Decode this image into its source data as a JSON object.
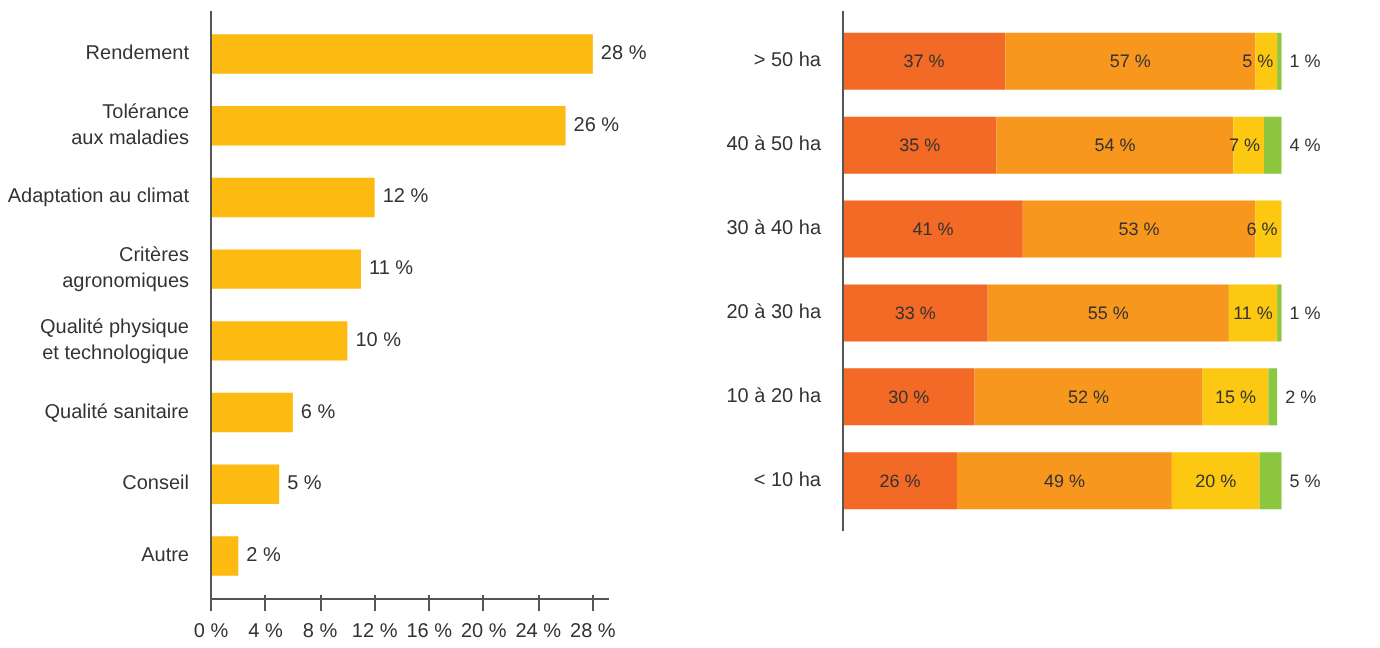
{
  "chart_data": [
    {
      "type": "bar",
      "orientation": "horizontal",
      "categories": [
        "Rendement",
        "Tolérance\naux maladies",
        "Adaptation au climat",
        "Critères\nagronomiques",
        "Qualité physique\net technologique",
        "Qualité sanitaire",
        "Conseil",
        "Autre"
      ],
      "values": [
        28,
        26,
        12,
        11,
        10,
        6,
        5,
        2
      ],
      "color": "#fdbb12",
      "value_labels": [
        "28 %",
        "26 %",
        "12 %",
        "11 %",
        "10 %",
        "6 %",
        "5 %",
        "2 %"
      ],
      "xlim": [
        0,
        29.2
      ],
      "xticks": [
        {
          "value": 0,
          "label": "0 %"
        },
        {
          "value": 4,
          "label": "4 %"
        },
        {
          "value": 8,
          "label": "8 %"
        },
        {
          "value": 12,
          "label": "12 %"
        },
        {
          "value": 16,
          "label": "16 %"
        },
        {
          "value": 20,
          "label": "20 %"
        },
        {
          "value": 24,
          "label": "24 %"
        },
        {
          "value": 28,
          "label": "28 %"
        }
      ],
      "grid": false
    },
    {
      "type": "bar",
      "orientation": "horizontal",
      "stacked": true,
      "categories": [
        "> 50 ha",
        "40 à 50 ha",
        "30 à 40 ha",
        "20 à 30 ha",
        "10 à 20 ha",
        "< 10 ha"
      ],
      "series": [
        {
          "color": "#f26a26",
          "values": [
            37,
            35,
            41,
            33,
            30,
            26
          ],
          "value_labels": [
            "37 %",
            "35 %",
            "41 %",
            "33 %",
            "30 %",
            "26 %"
          ]
        },
        {
          "color": "#f7971e",
          "values": [
            57,
            54,
            53,
            55,
            52,
            49
          ],
          "value_labels": [
            "57 %",
            "54 %",
            "53 %",
            "55 %",
            "52 %",
            "49 %"
          ]
        },
        {
          "color": "#fcc812",
          "values": [
            5,
            7,
            6,
            11,
            15,
            20
          ],
          "value_labels": [
            "5 %",
            "7 %",
            "6 %",
            "11 %",
            "15 %",
            "20 %"
          ]
        },
        {
          "color": "#8dc63f",
          "values": [
            1,
            4,
            null,
            1,
            2,
            5
          ],
          "value_labels": [
            "1 %",
            "4 %",
            null,
            "1 %",
            "2 %",
            "5 %"
          ]
        }
      ],
      "tick_labels": "y",
      "grid": false
    }
  ]
}
